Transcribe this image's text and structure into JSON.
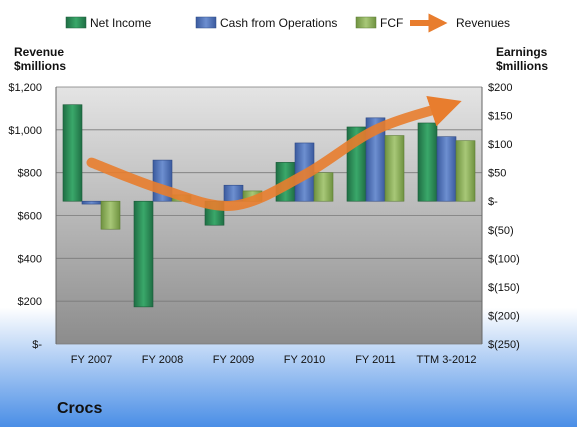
{
  "chart_data": {
    "type": "bar",
    "company": "Crocs",
    "categories": [
      "FY 2007",
      "FY 2008",
      "FY 2009",
      "FY 2010",
      "FY 2011",
      "TTM 3-2012"
    ],
    "left_axis": {
      "title_line1": "Revenue",
      "title_line2": "$millions",
      "range": [
        0,
        1200
      ],
      "ticks": [
        {
          "value": 0,
          "label": "$-"
        },
        {
          "value": 200,
          "label": "$200"
        },
        {
          "value": 400,
          "label": "$400"
        },
        {
          "value": 600,
          "label": "$600"
        },
        {
          "value": 800,
          "label": "$800"
        },
        {
          "value": 1000,
          "label": "$1,000"
        },
        {
          "value": 1200,
          "label": "$1,200"
        }
      ]
    },
    "right_axis": {
      "title_line1": "Earnings",
      "title_line2": "$millions",
      "range": [
        -250,
        200
      ],
      "ticks": [
        {
          "value": 200,
          "label": "$200"
        },
        {
          "value": 150,
          "label": "$150"
        },
        {
          "value": 100,
          "label": "$100"
        },
        {
          "value": 50,
          "label": "$50"
        },
        {
          "value": 0,
          "label": "$-"
        },
        {
          "value": -50,
          "label": "$(50)"
        },
        {
          "value": -100,
          "label": "$(100)"
        },
        {
          "value": -150,
          "label": "$(150)"
        },
        {
          "value": -200,
          "label": "$(200)"
        },
        {
          "value": -250,
          "label": "$(250)"
        }
      ]
    },
    "series": [
      {
        "name": "Net Income",
        "axis": "right",
        "color": "#2e8b57",
        "values": [
          169,
          -185,
          -42,
          68,
          130,
          137
        ]
      },
      {
        "name": "Cash from Operations",
        "axis": "right",
        "color": "#4f6fb3",
        "values": [
          -5,
          72,
          28,
          102,
          146,
          113
        ]
      },
      {
        "name": "FCF",
        "axis": "right",
        "color": "#8fb35a",
        "values": [
          -49,
          11,
          18,
          50,
          115,
          106
        ]
      }
    ],
    "revenue_line": {
      "name": "Revenues",
      "axis": "left",
      "color": "#e87d2e",
      "values": [
        847,
        721,
        646,
        790,
        1000,
        1111
      ]
    },
    "grid": true,
    "legend_position": "top"
  }
}
